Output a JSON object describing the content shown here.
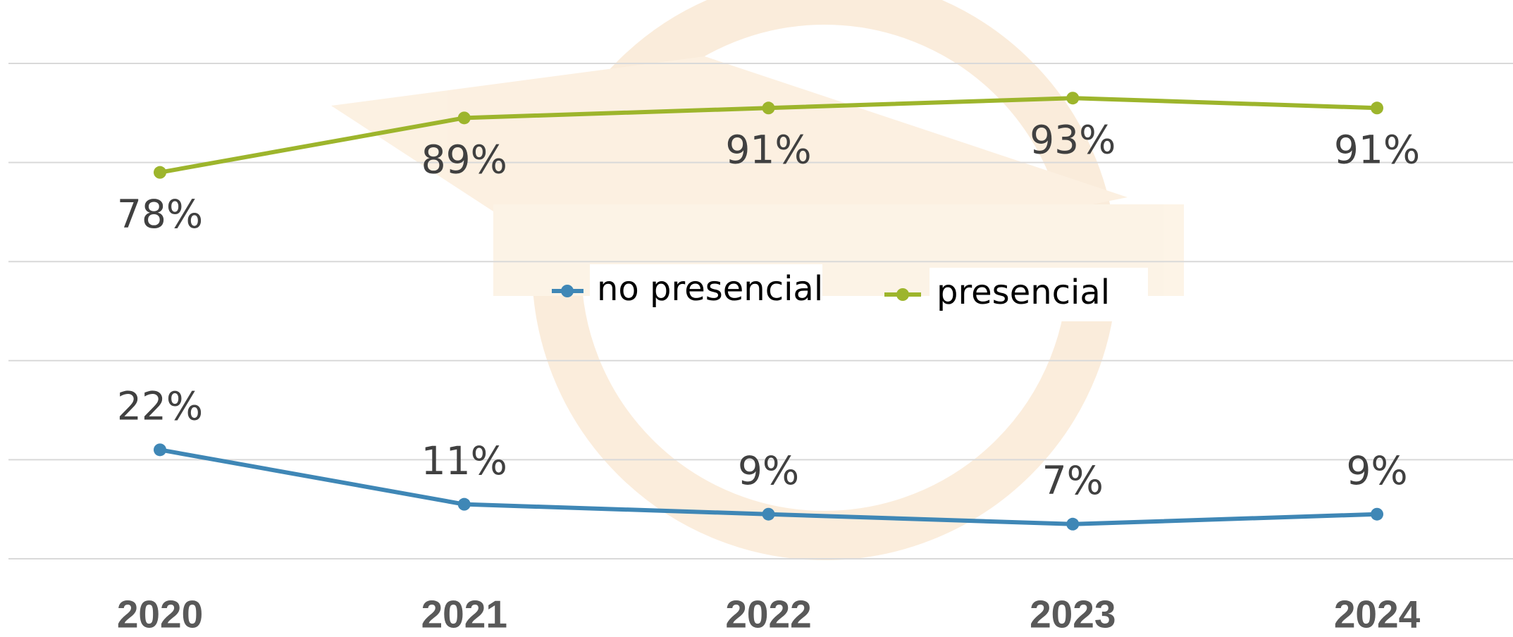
{
  "chart_data": {
    "type": "line",
    "categories": [
      "2020",
      "2021",
      "2022",
      "2023",
      "2024"
    ],
    "series": [
      {
        "name": "no presencial",
        "color": "#3f87b6",
        "values": [
          22,
          11,
          9,
          7,
          9
        ],
        "value_labels": [
          "22%",
          "11%",
          "9%",
          "7%",
          "9%"
        ]
      },
      {
        "name": "presencial",
        "color": "#9db52c",
        "values": [
          78,
          89,
          91,
          93,
          91
        ],
        "value_labels": [
          "78%",
          "89%",
          "91%",
          "93%",
          "91%"
        ]
      }
    ],
    "ylim": [
      0,
      100
    ],
    "yticks": [
      0,
      20,
      40,
      60,
      80,
      100
    ],
    "grid": true,
    "legend": "center"
  }
}
